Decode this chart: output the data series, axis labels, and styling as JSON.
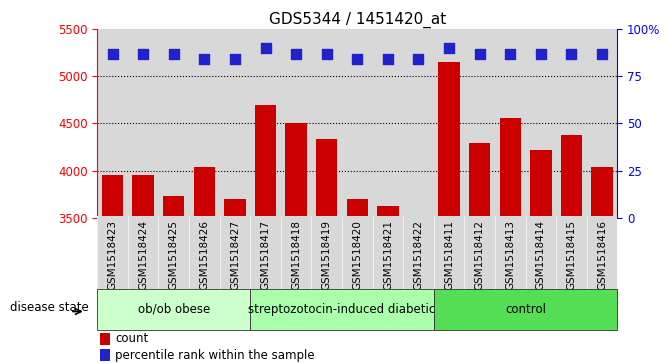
{
  "title": "GDS5344 / 1451420_at",
  "samples": [
    "GSM1518423",
    "GSM1518424",
    "GSM1518425",
    "GSM1518426",
    "GSM1518427",
    "GSM1518417",
    "GSM1518418",
    "GSM1518419",
    "GSM1518420",
    "GSM1518421",
    "GSM1518422",
    "GSM1518411",
    "GSM1518412",
    "GSM1518413",
    "GSM1518414",
    "GSM1518415",
    "GSM1518416"
  ],
  "counts": [
    3950,
    3950,
    3730,
    4040,
    3700,
    4700,
    4500,
    4330,
    3700,
    3620,
    3500,
    5150,
    4290,
    4560,
    4220,
    4380,
    4040
  ],
  "percentile_ranks": [
    87,
    87,
    87,
    84,
    84,
    90,
    87,
    87,
    84,
    84,
    84,
    90,
    87,
    87,
    87,
    87,
    87
  ],
  "groups": [
    {
      "label": "ob/ob obese",
      "start": 0,
      "end": 5
    },
    {
      "label": "streptozotocin-induced diabetic",
      "start": 5,
      "end": 11
    },
    {
      "label": "control",
      "start": 11,
      "end": 17
    }
  ],
  "group_colors": [
    "#ccffcc",
    "#aaffaa",
    "#55dd55"
  ],
  "bar_color": "#cc0000",
  "dot_color": "#2222cc",
  "ylim_left": [
    3500,
    5500
  ],
  "ylim_right": [
    0,
    100
  ],
  "yticks_left": [
    3500,
    4000,
    4500,
    5000,
    5500
  ],
  "yticks_right": [
    0,
    25,
    50,
    75,
    100
  ],
  "ytick_right_labels": [
    "0",
    "25",
    "50",
    "75",
    "100%"
  ],
  "grid_values": [
    4000,
    4500,
    5000
  ],
  "dot_size": 55,
  "bar_width": 0.7,
  "xlabel_area_label": "disease state",
  "legend_count_label": "count",
  "legend_pct_label": "percentile rank within the sample",
  "title_fontsize": 11,
  "sample_label_fontsize": 7.5,
  "axis_tick_fontsize": 8.5,
  "group_label_fontsize": 8.5,
  "bg_col_color": "#d8d8d8",
  "bg_white": "#ffffff"
}
